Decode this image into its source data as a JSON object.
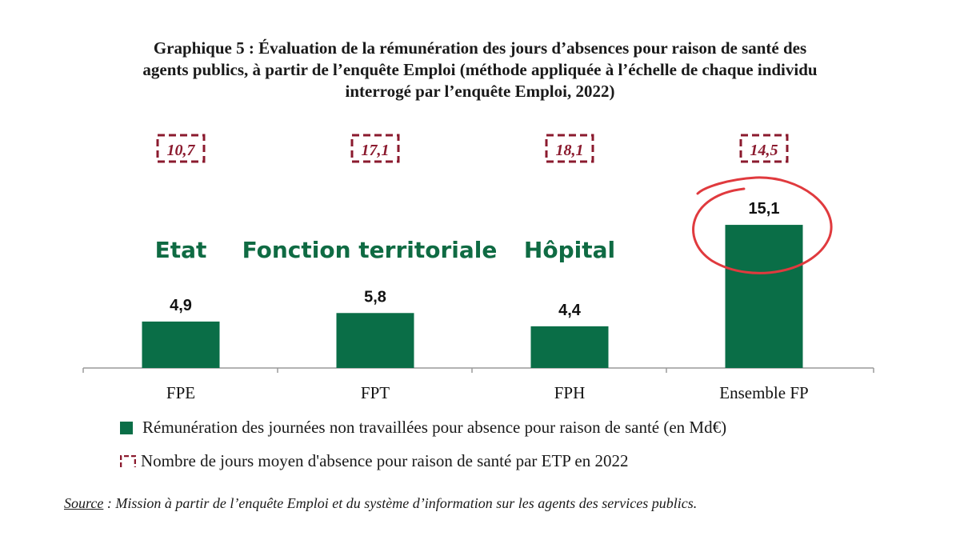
{
  "title_lines": [
    "Graphique 5 : Évaluation de la rémunération des jours d’absences pour raison de santé des",
    "agents publics, à partir de l’enquête Emploi (méthode appliquée à l’échelle de chaque individu",
    "interrogé par l’enquête Emploi, 2022)"
  ],
  "colors": {
    "bar": "#0a6e47",
    "days_box": "#8b1a2e",
    "annotation": "#0f6b43",
    "circle": "#e03a3e"
  },
  "chart_data": {
    "type": "bar",
    "categories": [
      "FPE",
      "FPT",
      "FPH",
      "Ensemble FP"
    ],
    "series": [
      {
        "name": "Rémunération des journées non travaillées pour absence pour raison de santé (en Md€)",
        "values": [
          4.9,
          5.8,
          4.4,
          15.1
        ],
        "labels": [
          "4,9",
          "5,8",
          "4,4",
          "15,1"
        ]
      },
      {
        "name": "Nombre de jours moyen d'absence pour raison de santé par ETP en 2022",
        "values": [
          10.7,
          17.1,
          18.1,
          14.5
        ],
        "labels": [
          "10,7",
          "17,1",
          "18,1",
          "14,5"
        ]
      }
    ],
    "group_annotations": [
      "Etat",
      "Fonction territoriale",
      "Hôpital"
    ],
    "highlighted_category": "Ensemble FP",
    "ylim": [
      0,
      20
    ],
    "grid": false,
    "legend_position": "bottom"
  },
  "source": {
    "key": "Source",
    "text": " : Mission à partir de l’enquête Emploi et du système d’information sur les agents des services publics."
  }
}
